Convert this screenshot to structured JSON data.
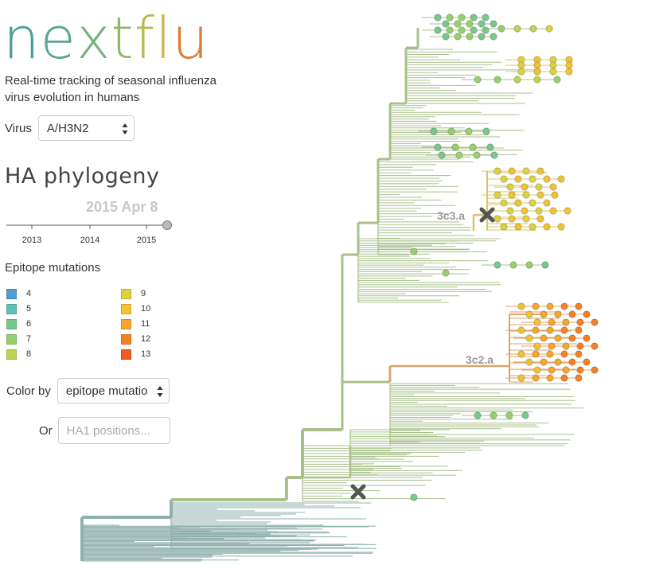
{
  "logo": {
    "letters": [
      {
        "ch": "n",
        "color": "#4a9e9a"
      },
      {
        "ch": "e",
        "color": "#58a88f"
      },
      {
        "ch": "x",
        "color": "#73b07c"
      },
      {
        "ch": "t",
        "color": "#90b866"
      },
      {
        "ch": "f",
        "color": "#b4bc4a"
      },
      {
        "ch": "l",
        "color": "#d2b13c"
      },
      {
        "ch": "u",
        "color": "#e0782e"
      }
    ]
  },
  "tagline": "Real-time tracking of seasonal influenza virus evolution in humans",
  "virus": {
    "label": "Virus",
    "selected": "A/H3N2"
  },
  "phylogeny": {
    "title": "HA phylogeny",
    "date": "2015 Apr 8",
    "years": [
      "2013",
      "2014",
      "2015"
    ],
    "slider_position": 1.0
  },
  "epitope": {
    "title": "Epitope mutations",
    "items": [
      {
        "label": "4",
        "color": "#4f9fd4"
      },
      {
        "label": "5",
        "color": "#5cc2b6"
      },
      {
        "label": "6",
        "color": "#76c88c"
      },
      {
        "label": "7",
        "color": "#96d06c"
      },
      {
        "label": "8",
        "color": "#bcd354"
      },
      {
        "label": "9",
        "color": "#ddd23e"
      },
      {
        "label": "10",
        "color": "#f3c232"
      },
      {
        "label": "11",
        "color": "#f7a52c"
      },
      {
        "label": "12",
        "color": "#f58027"
      },
      {
        "label": "13",
        "color": "#f05a22"
      }
    ]
  },
  "color_by": {
    "label": "Color by",
    "selected": "epitope mutatio"
  },
  "positions": {
    "label": "Or",
    "placeholder": "HA1 positions..."
  },
  "clades": [
    {
      "name": "3c3.a"
    },
    {
      "name": "3c2.a"
    }
  ],
  "colors": {
    "branch_base": "#8fb1ad",
    "branch_mid": "#a9c08b",
    "branch_yellow": "#d9c46a",
    "branch_orange": "#d9a56a",
    "marker": "#555555"
  }
}
